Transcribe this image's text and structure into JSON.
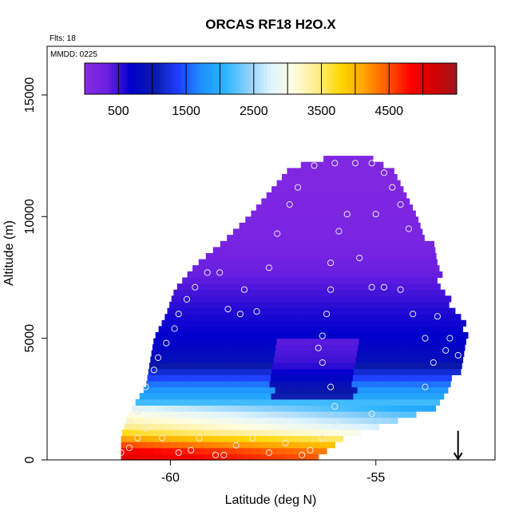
{
  "chart_data": {
    "type": "heatmap",
    "title": "ORCAS RF18 H2O.X",
    "flights_note": "Flts: 18",
    "date_note": "MMDD: 0225",
    "xlabel": "Latitude (deg N)",
    "ylabel": "Altitude (m)",
    "xlim": [
      -63,
      -52.1
    ],
    "ylim": [
      0,
      17000
    ],
    "x_ticks": [
      -60,
      -55
    ],
    "x_tick_labels": [
      "-60",
      "-55"
    ],
    "y_ticks": [
      0,
      5000,
      10000,
      15000
    ],
    "y_tick_labels": [
      "0",
      "5000",
      "10000",
      "15000"
    ],
    "colorbar": {
      "range": [
        0,
        5500
      ],
      "ticks": [
        500,
        1500,
        2500,
        3500,
        4500
      ],
      "tick_labels": [
        "500",
        "1500",
        "2500",
        "3500",
        "4500"
      ],
      "colors": [
        "#8a2be2",
        "#6a1fe0",
        "#0000cd",
        "#0a1aa8",
        "#1e3cff",
        "#1e90ff",
        "#28b4ff",
        "#87cefa",
        "#dff4ff",
        "#fffde0",
        "#ffec8b",
        "#ffd700",
        "#ffa500",
        "#ff5a00",
        "#ff0000",
        "#d40000",
        "#a0161c"
      ]
    },
    "envelope": [
      {
        "alt": 0,
        "lat_min": -61.2,
        "lat_max": -56.5
      },
      {
        "alt": 1000,
        "lat_min": -61.2,
        "lat_max": -55.8
      },
      {
        "alt": 2000,
        "lat_min": -61.0,
        "lat_max": -53.8
      },
      {
        "alt": 3000,
        "lat_min": -60.6,
        "lat_max": -53.3
      },
      {
        "alt": 4000,
        "lat_min": -60.5,
        "lat_max": -53.0
      },
      {
        "alt": 5000,
        "lat_min": -60.4,
        "lat_max": -52.8
      },
      {
        "alt": 6000,
        "lat_min": -60.1,
        "lat_max": -53.1
      },
      {
        "alt": 7000,
        "lat_min": -59.9,
        "lat_max": -53.5
      },
      {
        "alt": 8000,
        "lat_min": -59.4,
        "lat_max": -53.6
      },
      {
        "alt": 9000,
        "lat_min": -58.7,
        "lat_max": -53.8
      },
      {
        "alt": 10000,
        "lat_min": -58.1,
        "lat_max": -54.0
      },
      {
        "alt": 11000,
        "lat_min": -57.6,
        "lat_max": -54.3
      },
      {
        "alt": 12000,
        "lat_min": -57.1,
        "lat_max": -54.8
      },
      {
        "alt": 12500,
        "lat_min": -56.0,
        "lat_max": -55.2
      }
    ],
    "value_profile": [
      {
        "alt": 0,
        "value": 4700
      },
      {
        "alt": 400,
        "value": 4500
      },
      {
        "alt": 800,
        "value": 3900
      },
      {
        "alt": 1200,
        "value": 3200
      },
      {
        "alt": 1600,
        "value": 2900
      },
      {
        "alt": 2000,
        "value": 2600
      },
      {
        "alt": 2500,
        "value": 2000
      },
      {
        "alt": 3000,
        "value": 1700
      },
      {
        "alt": 3500,
        "value": 1300
      },
      {
        "alt": 4000,
        "value": 900
      },
      {
        "alt": 5000,
        "value": 700
      },
      {
        "alt": 6000,
        "value": 600
      },
      {
        "alt": 7000,
        "value": 450
      },
      {
        "alt": 8000,
        "value": 300
      },
      {
        "alt": 9000,
        "value": 200
      },
      {
        "alt": 10000,
        "value": 150
      },
      {
        "alt": 12500,
        "value": 100
      }
    ],
    "observations": [
      {
        "lat": -61.2,
        "alt": 300
      },
      {
        "lat": -61.0,
        "alt": 500
      },
      {
        "lat": -60.8,
        "alt": 900
      },
      {
        "lat": -60.6,
        "alt": 1300
      },
      {
        "lat": -60.2,
        "alt": 900
      },
      {
        "lat": -59.8,
        "alt": 300
      },
      {
        "lat": -59.5,
        "alt": 400
      },
      {
        "lat": -59.3,
        "alt": 900
      },
      {
        "lat": -58.9,
        "alt": 200
      },
      {
        "lat": -58.7,
        "alt": 200
      },
      {
        "lat": -58.4,
        "alt": 600
      },
      {
        "lat": -58.0,
        "alt": 900
      },
      {
        "lat": -57.6,
        "alt": 300
      },
      {
        "lat": -57.2,
        "alt": 700
      },
      {
        "lat": -56.8,
        "alt": 200
      },
      {
        "lat": -56.6,
        "alt": 400
      },
      {
        "lat": -56.3,
        "alt": 900
      },
      {
        "lat": -61.0,
        "alt": 1500
      },
      {
        "lat": -60.8,
        "alt": 2000
      },
      {
        "lat": -60.6,
        "alt": 3000
      },
      {
        "lat": -60.4,
        "alt": 3700
      },
      {
        "lat": -60.3,
        "alt": 4200
      },
      {
        "lat": -60.1,
        "alt": 4800
      },
      {
        "lat": -59.9,
        "alt": 5400
      },
      {
        "lat": -59.8,
        "alt": 6000
      },
      {
        "lat": -59.6,
        "alt": 6600
      },
      {
        "lat": -59.4,
        "alt": 7100
      },
      {
        "lat": -59.1,
        "alt": 7700
      },
      {
        "lat": -58.8,
        "alt": 7700
      },
      {
        "lat": -58.6,
        "alt": 6200
      },
      {
        "lat": -58.3,
        "alt": 6000
      },
      {
        "lat": -57.9,
        "alt": 6100
      },
      {
        "lat": -58.2,
        "alt": 7000
      },
      {
        "lat": -57.6,
        "alt": 7900
      },
      {
        "lat": -57.4,
        "alt": 9300
      },
      {
        "lat": -57.1,
        "alt": 10500
      },
      {
        "lat": -56.9,
        "alt": 11200
      },
      {
        "lat": -56.5,
        "alt": 12100
      },
      {
        "lat": -56.0,
        "alt": 12200
      },
      {
        "lat": -55.5,
        "alt": 12200
      },
      {
        "lat": -55.1,
        "alt": 12200
      },
      {
        "lat": -54.8,
        "alt": 11800
      },
      {
        "lat": -54.6,
        "alt": 11200
      },
      {
        "lat": -54.4,
        "alt": 10500
      },
      {
        "lat": -54.2,
        "alt": 9500
      },
      {
        "lat": -55.0,
        "alt": 10100
      },
      {
        "lat": -55.7,
        "alt": 10100
      },
      {
        "lat": -55.9,
        "alt": 9400
      },
      {
        "lat": -56.1,
        "alt": 8100
      },
      {
        "lat": -55.4,
        "alt": 8300
      },
      {
        "lat": -55.1,
        "alt": 7100
      },
      {
        "lat": -54.8,
        "alt": 7100
      },
      {
        "lat": -54.4,
        "alt": 7000
      },
      {
        "lat": -54.1,
        "alt": 6000
      },
      {
        "lat": -56.1,
        "alt": 7000
      },
      {
        "lat": -56.2,
        "alt": 6000
      },
      {
        "lat": -56.3,
        "alt": 5100
      },
      {
        "lat": -56.4,
        "alt": 4600
      },
      {
        "lat": -56.3,
        "alt": 4000
      },
      {
        "lat": -56.1,
        "alt": 3000
      },
      {
        "lat": -56.0,
        "alt": 2200
      },
      {
        "lat": -56.0,
        "alt": 1500
      },
      {
        "lat": -55.1,
        "alt": 1900
      },
      {
        "lat": -53.8,
        "alt": 3000
      },
      {
        "lat": -53.6,
        "alt": 4000
      },
      {
        "lat": -53.3,
        "alt": 4500
      },
      {
        "lat": -53.2,
        "alt": 5000
      },
      {
        "lat": -53.8,
        "alt": 5000
      },
      {
        "lat": -53.5,
        "alt": 5900
      },
      {
        "lat": -53.0,
        "alt": 4300
      }
    ],
    "arrow_marker_lat": -53.0,
    "grid": false,
    "legend": "none"
  }
}
